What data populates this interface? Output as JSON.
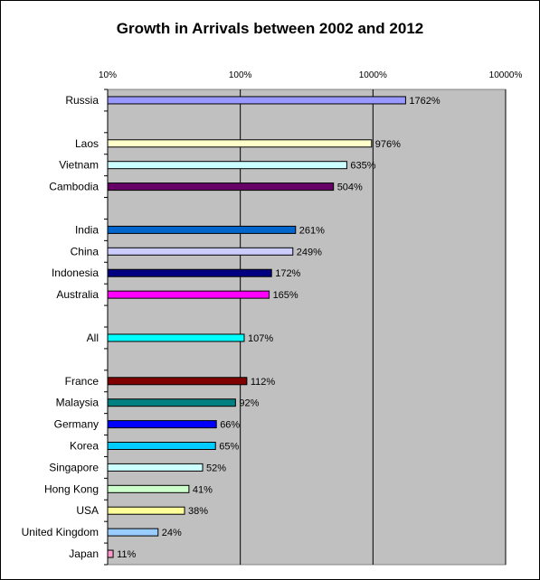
{
  "chart_data": {
    "type": "bar",
    "orientation": "horizontal",
    "title": "Growth in Arrivals between 2002 and 2012",
    "xscale": "log",
    "xlim": [
      10,
      10000
    ],
    "xticks": [
      {
        "value": 10,
        "label": "10%"
      },
      {
        "value": 100,
        "label": "100%"
      },
      {
        "value": 1000,
        "label": "1000%"
      },
      {
        "value": 10000,
        "label": "10000%"
      }
    ],
    "grid": "vertical",
    "legend": "none",
    "plot_background": "#c0c0c0",
    "rows": [
      {
        "category": "Russia",
        "value": 1762,
        "label": "1762%",
        "color": "#9999ff"
      },
      {
        "category": "",
        "value": null,
        "label": "",
        "color": ""
      },
      {
        "category": "Laos",
        "value": 976,
        "label": "976%",
        "color": "#ffffcc"
      },
      {
        "category": "Vietnam",
        "value": 635,
        "label": "635%",
        "color": "#ccffff"
      },
      {
        "category": "Cambodia",
        "value": 504,
        "label": "504%",
        "color": "#660066"
      },
      {
        "category": "",
        "value": null,
        "label": "",
        "color": ""
      },
      {
        "category": "India",
        "value": 261,
        "label": "261%",
        "color": "#0066cc"
      },
      {
        "category": "China",
        "value": 249,
        "label": "249%",
        "color": "#ccccff"
      },
      {
        "category": "Indonesia",
        "value": 172,
        "label": "172%",
        "color": "#000080"
      },
      {
        "category": "Australia",
        "value": 165,
        "label": "165%",
        "color": "#ff00ff"
      },
      {
        "category": "",
        "value": null,
        "label": "",
        "color": ""
      },
      {
        "category": "All",
        "value": 107,
        "label": "107%",
        "color": "#00ffff"
      },
      {
        "category": "",
        "value": null,
        "label": "",
        "color": ""
      },
      {
        "category": "France",
        "value": 112,
        "label": "112%",
        "color": "#800000"
      },
      {
        "category": "Malaysia",
        "value": 92,
        "label": "92%",
        "color": "#008080"
      },
      {
        "category": "Germany",
        "value": 66,
        "label": "66%",
        "color": "#0000ff"
      },
      {
        "category": "Korea",
        "value": 65,
        "label": "65%",
        "color": "#00ccff"
      },
      {
        "category": "Singapore",
        "value": 52,
        "label": "52%",
        "color": "#ccffff"
      },
      {
        "category": "Hong Kong",
        "value": 41,
        "label": "41%",
        "color": "#ccffcc"
      },
      {
        "category": "USA",
        "value": 38,
        "label": "38%",
        "color": "#ffff99"
      },
      {
        "category": "United Kingdom",
        "value": 24,
        "label": "24%",
        "color": "#99ccff"
      },
      {
        "category": "Japan",
        "value": 11,
        "label": "11%",
        "color": "#ff99cc"
      }
    ]
  }
}
